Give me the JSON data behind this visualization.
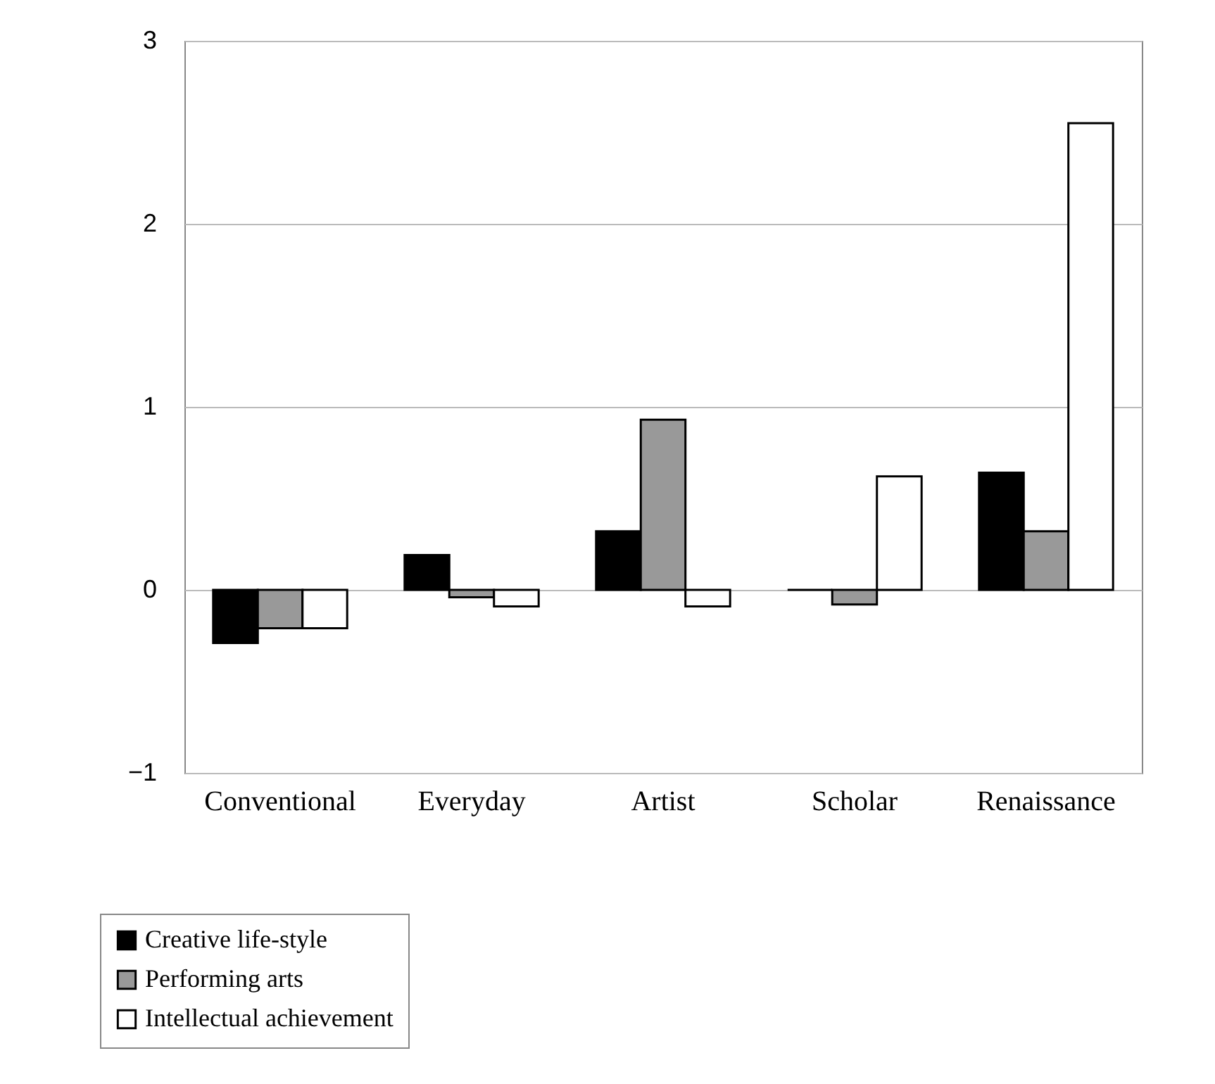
{
  "chart_data": {
    "type": "bar",
    "categories": [
      "Conventional",
      "Everyday",
      "Artist",
      "Scholar",
      "Renaissance"
    ],
    "series": [
      {
        "name": "Creative life-style",
        "color": "#000000",
        "values": [
          -0.29,
          0.19,
          0.32,
          0,
          0.64
        ]
      },
      {
        "name": "Performing arts",
        "color": "#999999",
        "values": [
          -0.21,
          -0.04,
          0.93,
          -0.08,
          0.32
        ]
      },
      {
        "name": "Intellectual achievement",
        "color": "#ffffff",
        "values": [
          -0.21,
          -0.09,
          -0.09,
          0.62,
          2.55
        ]
      }
    ],
    "ylim": [
      -1,
      3
    ],
    "yticks": [
      -1,
      0,
      1,
      2,
      3
    ],
    "grid": "y",
    "legend": "bottom left"
  }
}
